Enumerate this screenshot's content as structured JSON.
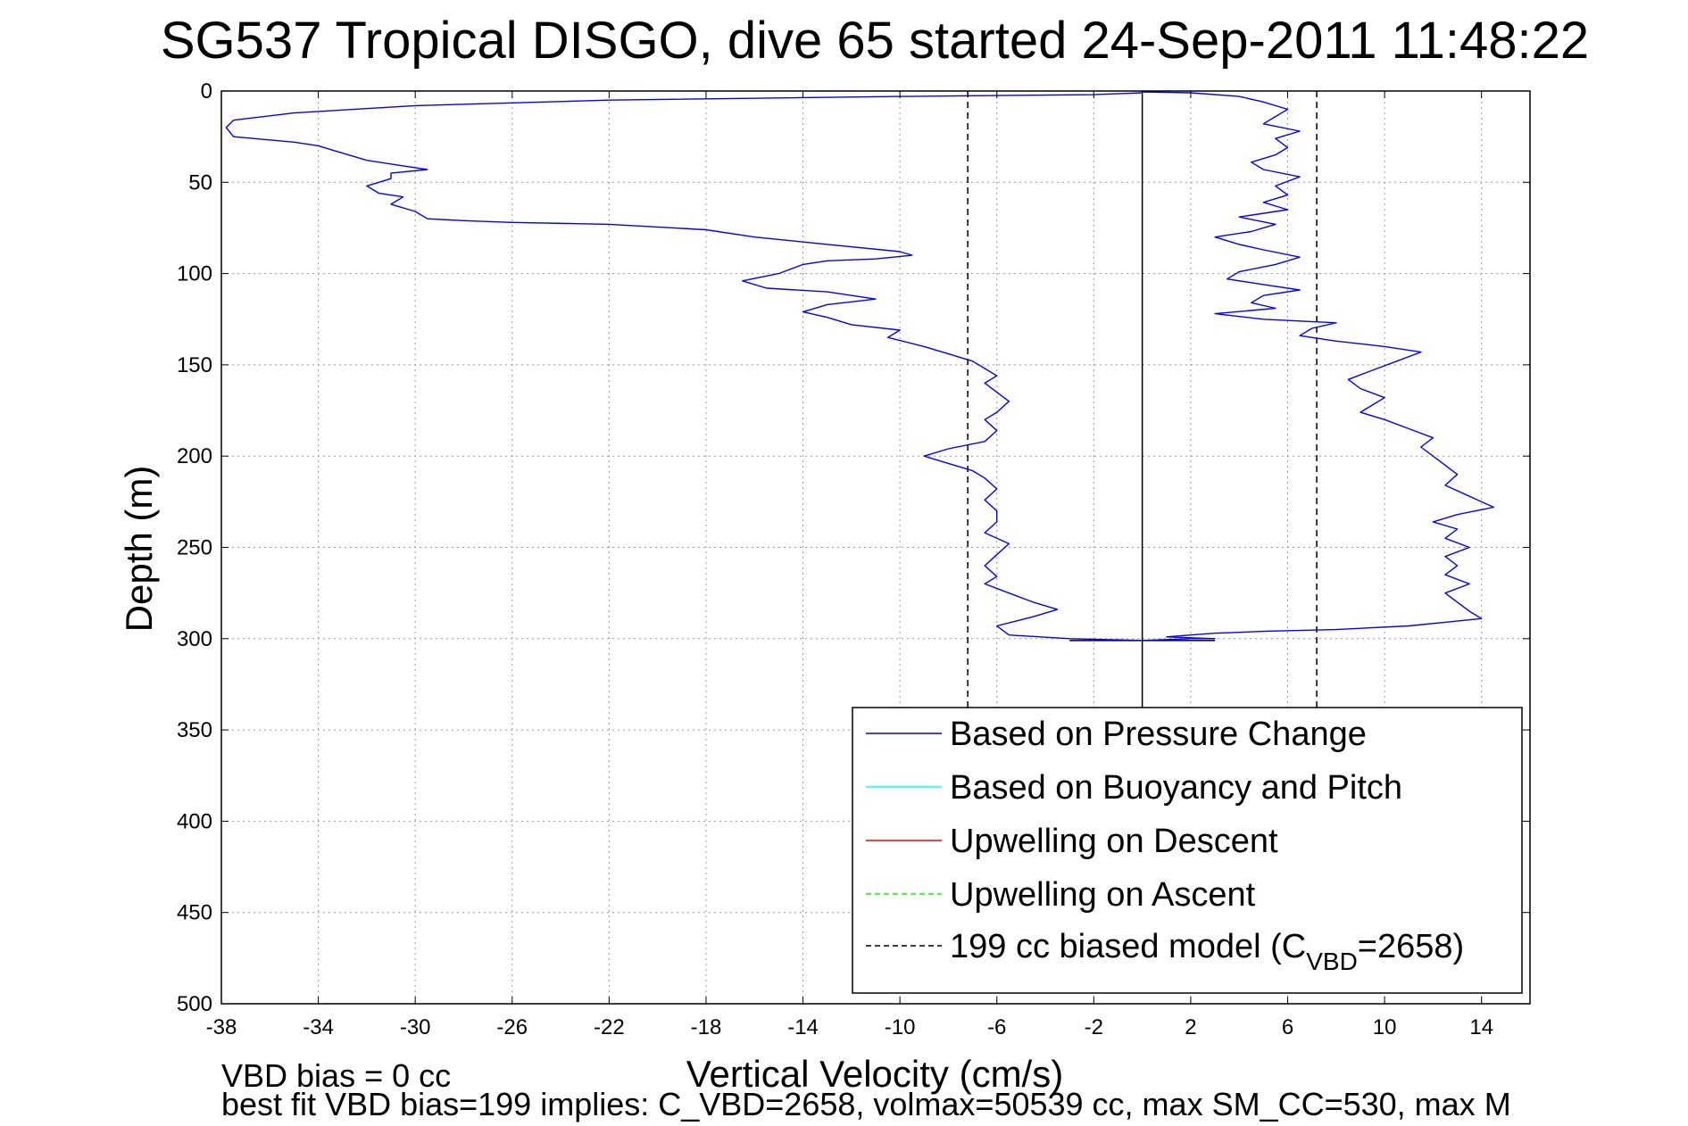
{
  "chart_data": {
    "type": "line",
    "title": "SG537 Tropical DISGO, dive 65 started 24-Sep-2011 11:48:22",
    "xlabel": "Vertical Velocity (cm/s)",
    "ylabel": "Depth (m)",
    "xlim": [
      -38,
      16
    ],
    "ylim": [
      0,
      500
    ],
    "y_reversed": true,
    "grid": true,
    "xticks": [
      "-38",
      "-34",
      "-30",
      "-26",
      "-22",
      "-18",
      "-14",
      "-10",
      "-6",
      "-2",
      "2",
      "6",
      "10",
      "14"
    ],
    "yticks": [
      "0",
      "50",
      "100",
      "150",
      "200",
      "250",
      "300",
      "350",
      "400",
      "450",
      "500"
    ],
    "legend_position": "bottom-right",
    "legend": [
      {
        "label": "Based on Pressure Change",
        "color": "#0000ff",
        "style": "solid"
      },
      {
        "label": "Based on Buoyancy and Pitch",
        "color": "#00ffff",
        "style": "solid"
      },
      {
        "label": "Upwelling on Descent",
        "color": "#ff0000",
        "style": "solid"
      },
      {
        "label": "Upwelling on Ascent",
        "color": "#00ff00",
        "style": "dashed"
      },
      {
        "label": "199 cc biased model (C",
        "label_sub": "VBD",
        "label_end": "=2658)",
        "color": "#000000",
        "style": "dashed"
      }
    ],
    "series": [
      {
        "name": "Based on Pressure Change",
        "color": "#0000ff",
        "points": [
          [
            0,
            1
          ],
          [
            -2,
            2
          ],
          [
            -10,
            3
          ],
          [
            -22,
            5
          ],
          [
            -30,
            8
          ],
          [
            -35,
            12
          ],
          [
            -37.5,
            16
          ],
          [
            -37.8,
            20
          ],
          [
            -37.5,
            25
          ],
          [
            -35,
            28
          ],
          [
            -34,
            30
          ],
          [
            -33,
            34
          ],
          [
            -32,
            38
          ],
          [
            -30.5,
            41
          ],
          [
            -29.5,
            43
          ],
          [
            -31,
            45
          ],
          [
            -31,
            48
          ],
          [
            -32,
            52
          ],
          [
            -31.5,
            56
          ],
          [
            -30.5,
            58
          ],
          [
            -31,
            62
          ],
          [
            -30,
            66
          ],
          [
            -29.5,
            70
          ],
          [
            -28,
            71
          ],
          [
            -26,
            72
          ],
          [
            -22,
            73
          ],
          [
            -18,
            76
          ],
          [
            -16,
            80
          ],
          [
            -13,
            84
          ],
          [
            -10,
            88
          ],
          [
            -9.5,
            90
          ],
          [
            -11,
            92
          ],
          [
            -13,
            93
          ],
          [
            -14,
            95
          ],
          [
            -15,
            100
          ],
          [
            -16.5,
            104
          ],
          [
            -15.5,
            108
          ],
          [
            -13,
            110
          ],
          [
            -11,
            114
          ],
          [
            -13,
            117
          ],
          [
            -14,
            121
          ],
          [
            -13,
            124
          ],
          [
            -12,
            128
          ],
          [
            -10,
            131
          ],
          [
            -10.5,
            135
          ],
          [
            -9,
            140
          ],
          [
            -8,
            144
          ],
          [
            -7,
            148
          ],
          [
            -6.5,
            152
          ],
          [
            -6,
            156
          ],
          [
            -6.5,
            160
          ],
          [
            -6,
            165
          ],
          [
            -5.5,
            170
          ],
          [
            -6,
            176
          ],
          [
            -6.5,
            180
          ],
          [
            -6,
            186
          ],
          [
            -6.5,
            192
          ],
          [
            -8,
            196
          ],
          [
            -9,
            200
          ],
          [
            -8,
            204
          ],
          [
            -7,
            208
          ],
          [
            -6.5,
            212
          ],
          [
            -6,
            218
          ],
          [
            -6.5,
            224
          ],
          [
            -6,
            230
          ],
          [
            -6,
            236
          ],
          [
            -6.5,
            242
          ],
          [
            -5.5,
            248
          ],
          [
            -6,
            254
          ],
          [
            -6.5,
            260
          ],
          [
            -6,
            266
          ],
          [
            -6.5,
            270
          ],
          [
            -5.5,
            275
          ],
          [
            -4.5,
            280
          ],
          [
            -3.5,
            284
          ],
          [
            -4.5,
            288
          ],
          [
            -6,
            293
          ],
          [
            -5.5,
            298
          ],
          [
            -3,
            300
          ],
          [
            0,
            301
          ],
          [
            2,
            300
          ],
          [
            3,
            300
          ],
          [
            1,
            299
          ],
          [
            2,
            298
          ],
          [
            3,
            297
          ],
          [
            5,
            296
          ],
          [
            8,
            295
          ],
          [
            11,
            293
          ],
          [
            12.5,
            291
          ],
          [
            14,
            289
          ],
          [
            13.5,
            285
          ],
          [
            13,
            280
          ],
          [
            12.5,
            275
          ],
          [
            13.5,
            270
          ],
          [
            12.5,
            265
          ],
          [
            13,
            260
          ],
          [
            12.5,
            255
          ],
          [
            13.5,
            250
          ],
          [
            12.5,
            245
          ],
          [
            13,
            240
          ],
          [
            12,
            236
          ],
          [
            13,
            232
          ],
          [
            14.5,
            228
          ],
          [
            13.5,
            222
          ],
          [
            12.5,
            216
          ],
          [
            13,
            210
          ],
          [
            12.5,
            205
          ],
          [
            12,
            200
          ],
          [
            11.5,
            195
          ],
          [
            12,
            190
          ],
          [
            11,
            185
          ],
          [
            10,
            180
          ],
          [
            9,
            176
          ],
          [
            9.5,
            172
          ],
          [
            10,
            168
          ],
          [
            9,
            163
          ],
          [
            8.5,
            158
          ],
          [
            9.5,
            153
          ],
          [
            10.5,
            148
          ],
          [
            11.5,
            143
          ],
          [
            10,
            140
          ],
          [
            8,
            137
          ],
          [
            6.5,
            134
          ],
          [
            7,
            130
          ],
          [
            8,
            127
          ],
          [
            5,
            125
          ],
          [
            3,
            122
          ],
          [
            5.5,
            119
          ],
          [
            4.5,
            116
          ],
          [
            5,
            112
          ],
          [
            6.5,
            109
          ],
          [
            5,
            106
          ],
          [
            3.5,
            103
          ],
          [
            4,
            99
          ],
          [
            5.5,
            95
          ],
          [
            6.5,
            91
          ],
          [
            5,
            87
          ],
          [
            4,
            84
          ],
          [
            3,
            80
          ],
          [
            4.5,
            77
          ],
          [
            5.5,
            73
          ],
          [
            4,
            69
          ],
          [
            6,
            65
          ],
          [
            5,
            61
          ],
          [
            6,
            57
          ],
          [
            5.5,
            52
          ],
          [
            6.5,
            47
          ],
          [
            5,
            43
          ],
          [
            4.5,
            39
          ],
          [
            5.5,
            35
          ],
          [
            6,
            31
          ],
          [
            5.5,
            26
          ],
          [
            6.5,
            22
          ],
          [
            5,
            18
          ],
          [
            5.5,
            14
          ],
          [
            6,
            10
          ],
          [
            5,
            6
          ],
          [
            4,
            3
          ],
          [
            2,
            1
          ],
          [
            0,
            0.5
          ]
        ]
      }
    ],
    "reference_lines": [
      {
        "x": 0,
        "style": "solid",
        "color": "#000000",
        "y_range": [
          0,
          350
        ]
      },
      {
        "x": -7.2,
        "style": "dashed",
        "color": "#000000",
        "y_range": [
          0,
          350
        ]
      },
      {
        "x": 7.2,
        "style": "dashed",
        "color": "#000000",
        "y_range": [
          0,
          350
        ]
      },
      {
        "y": 301,
        "style": "solid",
        "color": "#000000",
        "x_range": [
          -3,
          3
        ]
      }
    ],
    "annotations": [
      "VBD bias = 0 cc",
      "best fit VBD bias=199 implies: C_VBD=2658, volmax=50539 cc, max SM_CC=530, max M"
    ]
  }
}
